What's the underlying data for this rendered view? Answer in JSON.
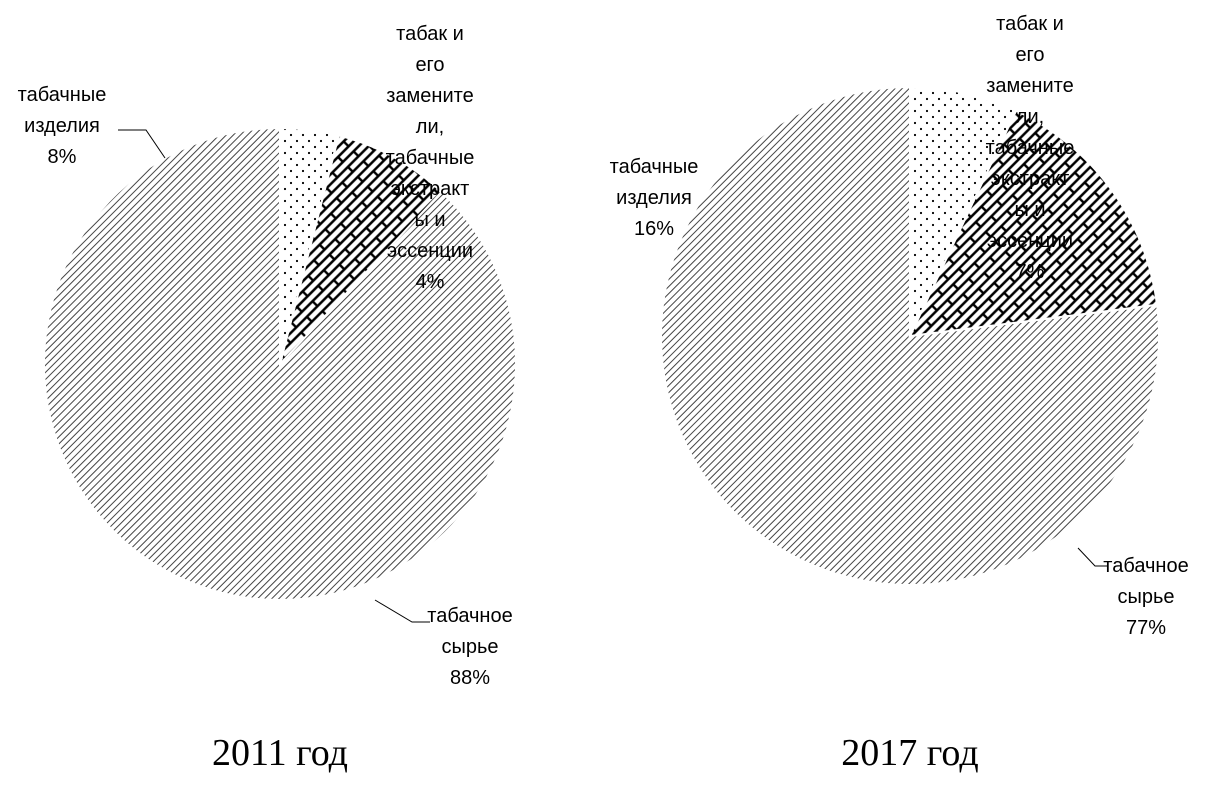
{
  "chart_data": [
    {
      "type": "pie",
      "title": "2011 год",
      "categories": [
        "табачное сырье",
        "табачные изделия",
        "табак и его заменители, табачные экстракты и эссенции"
      ],
      "values": [
        88,
        8,
        4
      ],
      "value_labels": [
        "88%",
        "8%",
        "4%"
      ],
      "label_lines": [
        [
          "табачное",
          "сырье",
          "88%"
        ],
        [
          "табачные",
          "изделия",
          "8%"
        ],
        [
          "табак и",
          "его",
          "замените",
          "ли,",
          "табачные",
          "экстракт",
          "ы и",
          "эссенции",
          "4%"
        ]
      ],
      "patterns": [
        "diagonal-hatch",
        "brick",
        "dots"
      ]
    },
    {
      "type": "pie",
      "title": "2017 год",
      "categories": [
        "табачное сырье",
        "табачные изделия",
        "табак и его заменители, табачные экстракты и эссенции"
      ],
      "values": [
        77,
        16,
        7
      ],
      "value_labels": [
        "77%",
        "16%",
        "7%"
      ],
      "label_lines": [
        [
          "табачное",
          "сырье",
          "77%"
        ],
        [
          "табачные",
          "изделия",
          "16%"
        ],
        [
          "табак и",
          "его",
          "замените",
          "ли,",
          "табачные",
          "экстракт",
          "ы и",
          "эссенции",
          "7%"
        ]
      ],
      "patterns": [
        "diagonal-hatch",
        "brick",
        "dots"
      ]
    }
  ]
}
